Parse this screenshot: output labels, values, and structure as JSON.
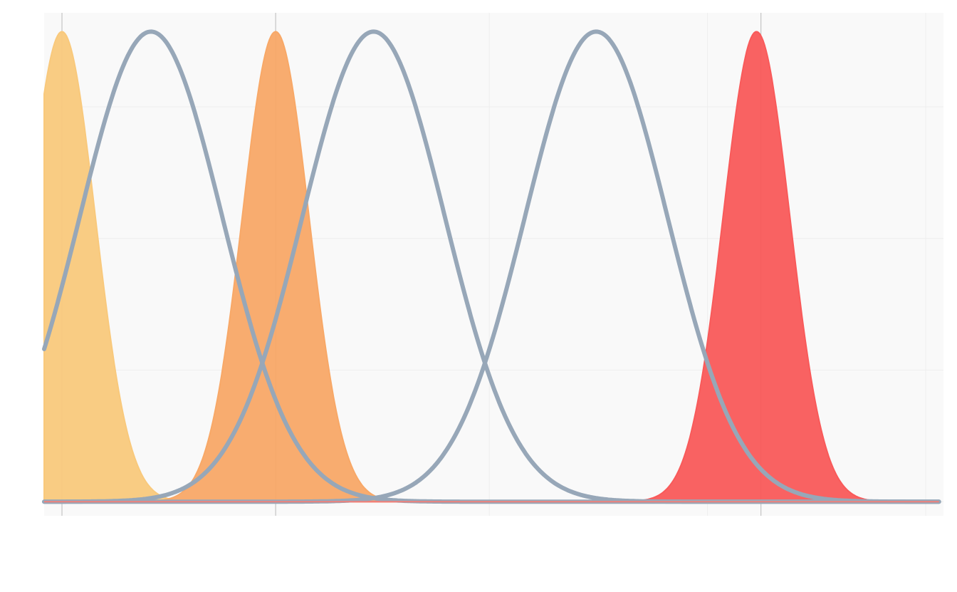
{
  "chart_data": {
    "type": "area",
    "title": "",
    "xlabel": "",
    "ylabel": "",
    "xlim": [
      -0.04,
      1.98
    ],
    "ylim": [
      -0.03,
      1.04
    ],
    "grid": true,
    "legend": "none",
    "x_ticks": [
      0.0,
      0.48,
      0.96,
      1.45,
      1.94
    ],
    "x_reference_lines": [
      0.0,
      0.48,
      1.57
    ],
    "y_ticks": [
      0.0,
      0.28,
      0.56,
      0.84
    ],
    "series": [
      {
        "kind": "line",
        "center": 0.2,
        "sd": 0.16,
        "peak": 1.0,
        "color": "#97a7b8"
      },
      {
        "kind": "line",
        "center": 0.7,
        "sd": 0.16,
        "peak": 1.0,
        "color": "#97a7b8"
      },
      {
        "kind": "line",
        "center": 1.2,
        "sd": 0.16,
        "peak": 1.0,
        "color": "#97a7b8"
      },
      {
        "kind": "filled",
        "center": 0.0,
        "sd": 0.075,
        "peak": 1.0,
        "color": "#f9c97c"
      },
      {
        "kind": "filled",
        "center": 0.48,
        "sd": 0.075,
        "peak": 1.0,
        "color": "#f8a867"
      },
      {
        "kind": "filled",
        "center": 1.56,
        "sd": 0.075,
        "peak": 1.0,
        "color": "#f95a5a"
      }
    ],
    "x_domain": [
      -0.04,
      1.97
    ]
  },
  "colors": {
    "panel_background": "#f9f9f9",
    "grid_line": "#eeeeee",
    "reference_line": "#c4c4c4"
  }
}
